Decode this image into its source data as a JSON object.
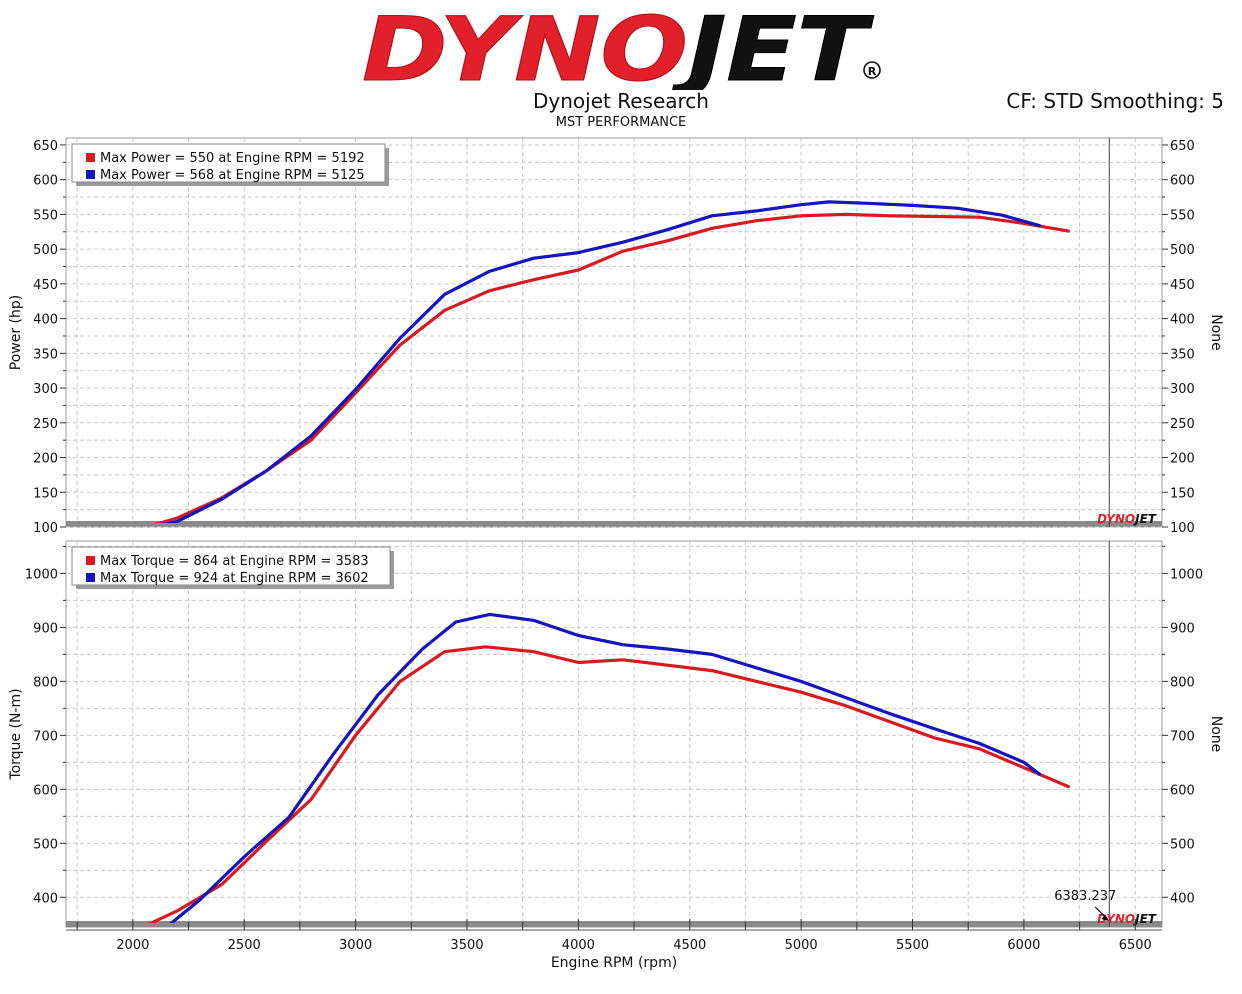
{
  "header": {
    "brand": "DYNOJET",
    "registered_mark": "®",
    "title": "Dynojet Research",
    "shop": "MST PERFORMANCE",
    "settings": "CF: STD Smoothing: 5"
  },
  "colors": {
    "run1": "#d8191f",
    "run2": "#1414c0",
    "brand_red": "#e1202b",
    "brand_black": "#111111"
  },
  "chart_data": [
    {
      "type": "line",
      "name": "power",
      "ylabel": "Power (hp)",
      "right_label": "None",
      "xlim": [
        1700,
        6620
      ],
      "ylim": [
        100,
        660
      ],
      "yticks": [
        100,
        150,
        200,
        250,
        300,
        350,
        400,
        450,
        500,
        550,
        600,
        650
      ],
      "legend": [
        "Max Power = 550 at Engine RPM = 5192",
        "Max Power = 568 at Engine RPM = 5125"
      ],
      "series": [
        {
          "color": "#d8191f",
          "x": [
            2060,
            2200,
            2400,
            2600,
            2800,
            3000,
            3200,
            3400,
            3600,
            3800,
            4000,
            4200,
            4400,
            4600,
            4800,
            5000,
            5200,
            5400,
            5600,
            5800,
            6000,
            6200
          ],
          "y": [
            100,
            113,
            142,
            181,
            225,
            293,
            362,
            412,
            440,
            456,
            470,
            497,
            512,
            530,
            541,
            548,
            550,
            548,
            547,
            546,
            537,
            526
          ]
        },
        {
          "color": "#1414c0",
          "x": [
            2100,
            2200,
            2400,
            2600,
            2800,
            3000,
            3200,
            3400,
            3600,
            3800,
            4000,
            4200,
            4400,
            4600,
            4800,
            5000,
            5125,
            5300,
            5500,
            5700,
            5900,
            6070
          ],
          "y": [
            100,
            108,
            140,
            181,
            231,
            298,
            372,
            435,
            468,
            487,
            495,
            510,
            528,
            548,
            555,
            564,
            568,
            566,
            563,
            559,
            549,
            534
          ]
        }
      ]
    },
    {
      "type": "line",
      "name": "torque",
      "ylabel": "Torque (N-m)",
      "xlabel": "Engine RPM (rpm)",
      "right_label": "None",
      "xlim": [
        1700,
        6620
      ],
      "ylim": [
        345,
        1060
      ],
      "xticks": [
        2000,
        2500,
        3000,
        3500,
        4000,
        4500,
        5000,
        5500,
        6000,
        6500
      ],
      "yticks": [
        400,
        500,
        600,
        700,
        800,
        900,
        1000
      ],
      "legend": [
        "Max Torque = 864 at Engine RPM = 3583",
        "Max Torque = 924 at Engine RPM = 3602"
      ],
      "cursor_label": "6383.237",
      "cursor_x": 6383.237,
      "series": [
        {
          "color": "#d8191f",
          "x": [
            2060,
            2200,
            2400,
            2600,
            2800,
            3000,
            3200,
            3400,
            3583,
            3800,
            4000,
            4200,
            4400,
            4600,
            4800,
            5000,
            5200,
            5400,
            5600,
            5800,
            6000,
            6200
          ],
          "y": [
            348,
            375,
            424,
            504,
            581,
            700,
            800,
            855,
            864,
            855,
            835,
            840,
            830,
            820,
            800,
            780,
            755,
            725,
            695,
            675,
            640,
            605
          ]
        },
        {
          "color": "#1414c0",
          "x": [
            2160,
            2300,
            2500,
            2700,
            2900,
            3100,
            3300,
            3450,
            3602,
            3800,
            4000,
            4200,
            4400,
            4600,
            4800,
            5000,
            5200,
            5400,
            5600,
            5800,
            6000,
            6070
          ],
          "y": [
            348,
            395,
            475,
            548,
            665,
            775,
            860,
            910,
            924,
            913,
            885,
            868,
            860,
            850,
            825,
            800,
            770,
            740,
            712,
            685,
            650,
            628
          ]
        }
      ]
    }
  ]
}
